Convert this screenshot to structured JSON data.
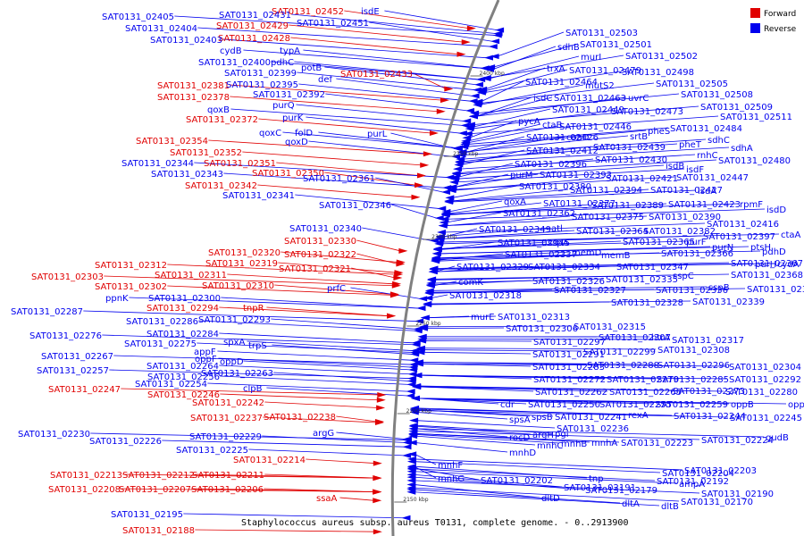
{
  "caption": "Staphylococcus aureus subsp. aureus T0131, complete genome. - 0..2913900",
  "legend": [
    {
      "label": "Forward",
      "color": "#e00000"
    },
    {
      "label": "Reverse",
      "color": "#0000ee"
    }
  ],
  "colors": {
    "forward": "#e00000",
    "reverse": "#0000ee",
    "backbone": "#808080"
  },
  "ticks": [
    "2400 kbp",
    "2350 kbp",
    "2300 kbp",
    "2250 kbp",
    "2200 kbp",
    "2150 kbp"
  ],
  "forward_labels": [
    "SAT0131_02452",
    "SAT0131_02429",
    "SAT0131_02428",
    "SAT0131_02433",
    "SAT0131_02381",
    "SAT0131_02378",
    "SAT0131_02372",
    "SAT0131_02354",
    "SAT0131_02352",
    "SAT0131_02351",
    "SAT0131_02350",
    "SAT0131_02342",
    "SAT0131_02330",
    "SAT0131_02320",
    "SAT0131_02322",
    "SAT0131_02312",
    "SAT0131_02319",
    "SAT0131_02321",
    "SAT0131_02303",
    "SAT0131_02311",
    "SAT0131_02302",
    "SAT0131_02310",
    "SAT0131_02294",
    "tnpR",
    "SAT0131_02247",
    "SAT0131_02246",
    "SAT0131_02242",
    "SAT0131_02237",
    "SAT0131_02238",
    "SAT0131_02214",
    "SAT0131_02213",
    "SAT0131_02212",
    "SAT0131_02211",
    "SAT0131_02208",
    "SAT0131_02207",
    "SAT0131_02206",
    "ssaA",
    "SAT0131_02188"
  ],
  "reverse_left_labels": [
    "SAT0131_02405",
    "SAT0131_02431",
    "isdE",
    "SAT0131_02404",
    "SAT0131_02451",
    "SAT0131_02403",
    "cydB",
    "typA",
    "SAT0131_02400",
    "pdhC",
    "potB",
    "SAT0131_02399",
    "def",
    "SAT0131_02395",
    "SAT0131_02392",
    "purQ",
    "qoxB",
    "purK",
    "qoxC",
    "folD",
    "purL",
    "qoxD",
    "SAT0131_02344",
    "SAT0131_02343",
    "SAT0131_02361",
    "SAT0131_02341",
    "SAT0131_02346",
    "SAT0131_02340",
    "ppnK",
    "SAT0131_02300",
    "prfC",
    "SAT0131_02287",
    "SAT0131_02286",
    "SAT0131_02293",
    "SAT0131_02284",
    "SAT0131_02276",
    "spxA",
    "SAT0131_02275",
    "trpS",
    "SAT0131_02267",
    "appF",
    "oppF",
    "oppD",
    "SAT0131_02257",
    "SAT0131_02264",
    "SAT0131_02256",
    "SAT0131_02263",
    "SAT0131_02254",
    "clpB",
    "SAT0131_02230",
    "argG",
    "SAT0131_02226",
    "SAT0131_02229",
    "SAT0131_02225",
    "SAT0131_02195"
  ],
  "reverse_right_labels": [
    "SAT0131_02503",
    "sdhB",
    "SAT0131_02501",
    "murI",
    "SAT0131_02502",
    "trxA",
    "SAT0131_02479",
    "SAT0131_02498",
    "mutS2",
    "SAT0131_02464",
    "SAT0131_02505",
    "isdC",
    "SAT0131_02463",
    "uvrC",
    "SAT0131_02508",
    "SAT0131_02449",
    "SAT0131_02473",
    "SAT0131_02509",
    "pycA",
    "ctaB",
    "SAT0131_02446",
    "SAT0131_02511",
    "SAT0131_02426",
    "coaD",
    "srtB",
    "pheS",
    "SAT0131_02484",
    "sdhC",
    "pheT",
    "sdhA",
    "SAT0131_02412",
    "SAT0131_02439",
    "rnhC",
    "SAT0131_02396",
    "SAT0131_02430",
    "isdB",
    "isdF",
    "SAT0131_02480",
    "purM",
    "SAT0131_02393",
    "SAT0131_02421",
    "SAT0131_02447",
    "SAT0131_02380",
    "SAT0131_02394",
    "SAT0131_02427",
    "isdA",
    "qoxA",
    "SAT0131_02377",
    "SAT0131_02389",
    "SAT0131_02423",
    "rpmF",
    "isdD",
    "SAT0131_02362",
    "SAT0131_02375",
    "SAT0131_02390",
    "SAT0131_02349",
    "atl",
    "SAT0131_02364",
    "SAT0131_02382",
    "SAT0131_02397",
    "ctaA",
    "SAT0131_02416",
    "SAT0131_02345",
    "sspA",
    "SAT0131_02365",
    "purF",
    "purN",
    "ptsH",
    "pdhD",
    "SAT0131_02337",
    "memD",
    "memB",
    "SAT0131_02366",
    "SAT0131_02329",
    "SAT0131_02334",
    "SAT0131_02347",
    "SAT0131_02367",
    "purH",
    "cydA",
    "comK",
    "SAT0131_02326",
    "SAT0131_02335",
    "sspC",
    "sspB",
    "SAT0131_02368",
    "SAT0131_02327",
    "SAT0131_02336",
    "SAT0131_02359",
    "SAT0131_02318",
    "SAT0131_02328",
    "SAT0131_02339",
    "murE",
    "SAT0131_02313",
    "SAT0131_02306",
    "SAT0131_02315",
    "SAT0131_02297",
    "SAT0131_02307",
    "htrA",
    "SAT0131_02317",
    "SAT0131_02291",
    "SAT0131_02299",
    "SAT0131_02308",
    "SAT0131_02283",
    "SAT0131_02288",
    "SAT0131_02296",
    "SAT0131_02304",
    "SAT0131_02272",
    "SAT0131_02279",
    "SAT0131_02285",
    "SAT0131_02292",
    "SAT0131_02262",
    "SAT0131_02265",
    "SAT0131_02273",
    "SAT0131_02280",
    "cdr",
    "SAT0131_02250",
    "SAT0131_02255",
    "SAT0131_02259",
    "oppB",
    "oppC",
    "spsA",
    "spsB",
    "SAT0131_02241",
    "rexA",
    "SAT0131_02244",
    "SAT0131_02245",
    "SAT0131_02236",
    "rocD",
    "argH",
    "pgi",
    "SAT0131_02224",
    "gudB",
    "mnhD",
    "mnhC",
    "mnhB",
    "mnhA",
    "SAT0131_02223",
    "mnhF",
    "SAT0131_02203",
    "mnhG",
    "SAT0131_02204",
    "SAT0131_02202",
    "tnp",
    "SAT0131_02192",
    "ampA",
    "SAT0131_02191",
    "SAT0131_02179",
    "SAT0131_02190",
    "dltD",
    "dltA",
    "dltB",
    "SAT0131_02170"
  ]
}
